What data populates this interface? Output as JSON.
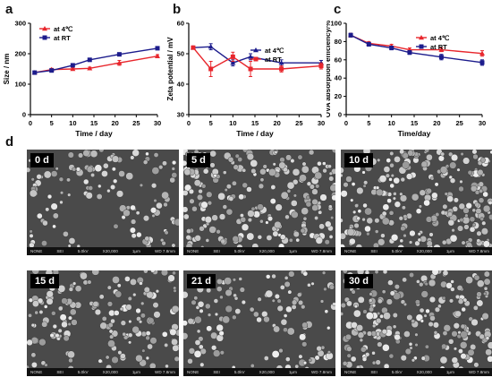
{
  "panels": {
    "a": "a",
    "b": "b",
    "c": "c",
    "d": "d"
  },
  "chart_data": [
    {
      "type": "line",
      "panel": "a",
      "xlabel": "Time / day",
      "ylabel": "Size / nm",
      "xlim": [
        0,
        30
      ],
      "ylim": [
        0,
        300
      ],
      "xticks": [
        0,
        5,
        10,
        15,
        20,
        25,
        30
      ],
      "yticks": [
        0,
        100,
        200,
        300
      ],
      "legend_position": "top-left",
      "x": [
        1,
        5,
        10,
        14,
        21,
        30
      ],
      "series": [
        {
          "name": "at 4℃",
          "color": "#e8262c",
          "marker": "triangle",
          "values": [
            138,
            148,
            150,
            152,
            170,
            192
          ],
          "errors": [
            3,
            4,
            4,
            4,
            8,
            5
          ]
        },
        {
          "name": "at RT",
          "color": "#1c1c8c",
          "marker": "square",
          "values": [
            138,
            145,
            162,
            180,
            198,
            218
          ],
          "errors": [
            3,
            4,
            4,
            4,
            5,
            4
          ]
        }
      ]
    },
    {
      "type": "line",
      "panel": "b",
      "xlabel": "Time / day",
      "ylabel": "Zeta potential / mV",
      "xlim": [
        0,
        30
      ],
      "ylim": [
        30,
        60
      ],
      "xticks": [
        0,
        5,
        10,
        15,
        20,
        25,
        30
      ],
      "yticks": [
        30,
        40,
        50,
        60
      ],
      "legend_position": "right",
      "x": [
        1,
        5,
        10,
        14,
        21,
        30
      ],
      "series": [
        {
          "name": "at 4℃",
          "color": "#1c1c8c",
          "marker": "triangle",
          "values": [
            52,
            52.3,
            47,
            49,
            47,
            47
          ],
          "errors": [
            0.5,
            1,
            1,
            1,
            1,
            0.8
          ]
        },
        {
          "name": "at RT",
          "color": "#e8262c",
          "marker": "square",
          "values": [
            52,
            45,
            49,
            45,
            45,
            46
          ],
          "errors": [
            0.5,
            2.5,
            1.5,
            2.5,
            1,
            1
          ]
        }
      ]
    },
    {
      "type": "line",
      "panel": "c",
      "xlabel": "Time/day",
      "ylabel": "OVA absorption efficiency/%",
      "xlim": [
        0,
        30
      ],
      "ylim": [
        0,
        100
      ],
      "xticks": [
        0,
        5,
        10,
        15,
        20,
        25,
        30
      ],
      "yticks": [
        0,
        20,
        40,
        60,
        80,
        100
      ],
      "legend_position": "top-right",
      "x": [
        1,
        5,
        10,
        14,
        21,
        30
      ],
      "series": [
        {
          "name": "at 4℃",
          "color": "#e8262c",
          "marker": "triangle",
          "values": [
            87,
            78,
            75,
            71,
            71,
            67
          ],
          "errors": [
            2,
            2,
            2,
            2,
            2,
            3
          ]
        },
        {
          "name": "at RT",
          "color": "#1c1c8c",
          "marker": "square",
          "values": [
            87,
            77,
            73,
            68,
            63,
            57
          ],
          "errors": [
            2,
            2,
            2,
            2,
            3,
            3
          ]
        }
      ]
    }
  ],
  "sem_images": [
    {
      "label": "0 d",
      "density": 0.55
    },
    {
      "label": "5 d",
      "density": 0.9
    },
    {
      "label": "10 d",
      "density": 1.0
    },
    {
      "label": "15 d",
      "density": 0.7
    },
    {
      "label": "21 d",
      "density": 0.6
    },
    {
      "label": "30 d",
      "density": 0.85
    }
  ],
  "sem_info_bar": {
    "left": "NONE",
    "items": [
      "SEI",
      "5.0kV",
      "X20,000",
      "1μm",
      "WD 7.8mm"
    ]
  }
}
